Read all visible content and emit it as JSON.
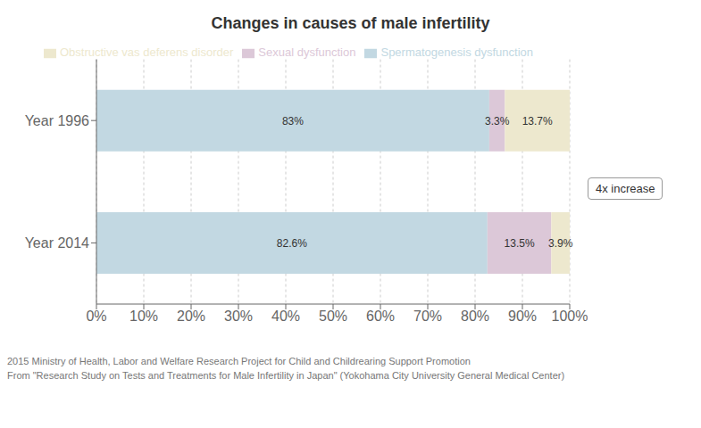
{
  "chart_data": {
    "type": "bar",
    "title": "Changes in causes of male infertility",
    "orientation": "horizontal",
    "stacked": true,
    "categories": [
      "Year 1996",
      "Year 2014"
    ],
    "series": [
      {
        "name": "Spermatogenesis dysfunction",
        "color": "#c2d8e2",
        "values": [
          83.0,
          82.6
        ],
        "value_labels": [
          "83%",
          "82.6%"
        ]
      },
      {
        "name": "Sexual dysfunction",
        "color": "#dcc8d8",
        "values": [
          3.3,
          13.5
        ],
        "value_labels": [
          "3.3%",
          "13.5%"
        ]
      },
      {
        "name": "Obstructive vas deferens disorder",
        "color": "#ede8ce",
        "values": [
          13.7,
          3.9
        ],
        "value_labels": [
          "13.7%",
          "3.9%"
        ]
      }
    ],
    "xlim": [
      0,
      100
    ],
    "xticks": [
      {
        "value": 0,
        "label": "0%"
      },
      {
        "value": 10,
        "label": "10%"
      },
      {
        "value": 20,
        "label": "20%"
      },
      {
        "value": 30,
        "label": "30%"
      },
      {
        "value": 40,
        "label": "40%"
      },
      {
        "value": 50,
        "label": "50%"
      },
      {
        "value": 60,
        "label": "60%"
      },
      {
        "value": 70,
        "label": "70%"
      },
      {
        "value": 80,
        "label": "80%"
      },
      {
        "value": 90,
        "label": "90%"
      },
      {
        "value": 100,
        "label": "100%"
      }
    ],
    "grid": true,
    "legend": "top",
    "data_labels": true,
    "annotations": [
      "4x increase"
    ],
    "footnotes": [
      "2015 Ministry of Health, Labor and Welfare Research Project for Child and Childrearing Support Promotion",
      "From \"Research Study on Tests and Treatments for Male Infertility in Japan\" (Yokohama City University General Medical Center)"
    ]
  }
}
